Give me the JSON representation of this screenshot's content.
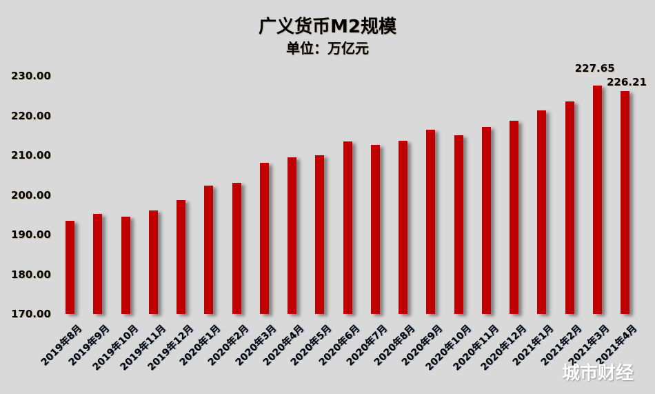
{
  "chart_data": {
    "type": "bar",
    "title": "广义货币M2规模",
    "subtitle": "单位：万亿元",
    "xlabel": "",
    "ylabel": "",
    "ylim": [
      170,
      230
    ],
    "yticks": [
      "170.00",
      "180.00",
      "190.00",
      "200.00",
      "210.00",
      "220.00",
      "230.00"
    ],
    "grid": false,
    "legend": null,
    "bar_color": "#c00000",
    "categories": [
      "2019年8月",
      "2019年9月",
      "2019年10月",
      "2019年11月",
      "2019年12月",
      "2020年1月",
      "2020年2月",
      "2020年3月",
      "2020年4月",
      "2020年5月",
      "2020年6月",
      "2020年7月",
      "2020年8月",
      "2020年9月",
      "2020年10月",
      "2020年11月",
      "2020年12月",
      "2021年1月",
      "2021年2月",
      "2021年3月",
      "2021年4月"
    ],
    "values": [
      193.5,
      195.2,
      194.5,
      196.1,
      198.7,
      202.3,
      203.0,
      208.1,
      209.4,
      210.0,
      213.5,
      212.6,
      213.7,
      216.4,
      215.0,
      217.2,
      218.7,
      221.3,
      223.6,
      227.65,
      226.21
    ],
    "annotations": [
      {
        "category": "2021年3月",
        "text": "227.65"
      },
      {
        "category": "2021年4月",
        "text": "226.21"
      }
    ]
  },
  "watermark": "城市财经"
}
